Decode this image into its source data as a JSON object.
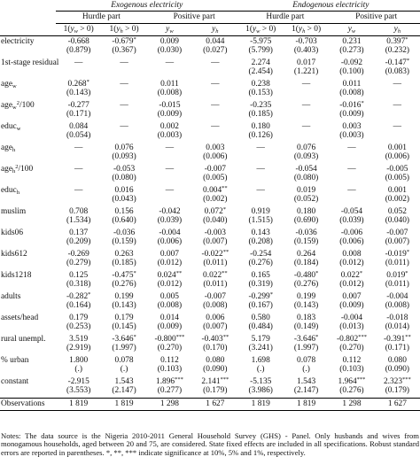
{
  "header": {
    "group1": "Exogenous electricity",
    "group2": "Endogenous electricity",
    "sub": [
      "Hurdle part",
      "Positive part",
      "Hurdle part",
      "Positive part"
    ],
    "cols": [
      "1(y_w > 0)",
      "1(y_h > 0)",
      "y_w",
      "y_h",
      "1(y_w > 0)",
      "1(y_h > 0)",
      "y_w",
      "y_h"
    ]
  },
  "rows": [
    {
      "label": "electricity",
      "coef": [
        "-0.668",
        "-0.679*",
        "0.009",
        "0.044",
        "-5.975",
        "-0.703",
        "0.231",
        "0.397*"
      ],
      "se": [
        "(0.879)",
        "(0.367)",
        "(0.030)",
        "(0.027)",
        "(5.799)",
        "(0.403)",
        "(0.273)",
        "(0.232)"
      ]
    },
    {
      "label": "1st-stage residual",
      "coef": [
        "—",
        "—",
        "—",
        "—",
        "2.274",
        "0.017",
        "-0.092",
        "-0.147*"
      ],
      "se": [
        "",
        "",
        "",
        "",
        "(2.454)",
        "(1.221)",
        "(0.100)",
        "(0.083)"
      ]
    },
    {
      "label": "age_w",
      "coef": [
        "0.268*",
        "—",
        "0.011",
        "—",
        "0.238",
        "—",
        "0.011",
        "—"
      ],
      "se": [
        "(0.143)",
        "",
        "(0.008)",
        "",
        "(0.153)",
        "",
        "(0.008)",
        ""
      ]
    },
    {
      "label": "age_w^2/100",
      "coef": [
        "-0.277",
        "—",
        "-0.015",
        "—",
        "-0.235",
        "—",
        "-0.016*",
        "—"
      ],
      "se": [
        "(0.171)",
        "",
        "(0.009)",
        "",
        "(0.185)",
        "",
        "(0.009)",
        ""
      ]
    },
    {
      "label": "educ_w",
      "coef": [
        "0.084",
        "—",
        "0.002",
        "—",
        "0.180",
        "—",
        "0.003",
        "—"
      ],
      "se": [
        "(0.054)",
        "",
        "(0.003)",
        "",
        "(0.126)",
        "",
        "(0.003)",
        ""
      ]
    },
    {
      "label": "age_h",
      "coef": [
        "—",
        "0.076",
        "—",
        "0.003",
        "—",
        "0.076",
        "—",
        "0.001"
      ],
      "se": [
        "",
        "(0.093)",
        "",
        "(0.006)",
        "",
        "(0.093)",
        "",
        "(0.006)"
      ]
    },
    {
      "label": "age_h^2/100",
      "coef": [
        "—",
        "-0.053",
        "—",
        "-0.007",
        "—",
        "-0.054",
        "—",
        "-0.005"
      ],
      "se": [
        "",
        "(0.080)",
        "",
        "(0.005)",
        "",
        "(0.080)",
        "",
        "(0.005)"
      ]
    },
    {
      "label": "educ_h",
      "coef": [
        "—",
        "0.016",
        "—",
        "0.004**",
        "—",
        "0.019",
        "—",
        "0.001"
      ],
      "se": [
        "",
        "(0.043)",
        "",
        "(0.002)",
        "",
        "(0.052)",
        "",
        "(0.002)"
      ]
    },
    {
      "label": "muslim",
      "coef": [
        "0.708",
        "0.156",
        "-0.042",
        "0.072*",
        "0.919",
        "0.180",
        "-0.054",
        "0.052"
      ],
      "se": [
        "(1.534)",
        "(0.640)",
        "(0.039)",
        "(0.040)",
        "(1.515)",
        "(0.690)",
        "(0.039)",
        "(0.040)"
      ]
    },
    {
      "label": "kids06",
      "coef": [
        "0.137",
        "-0.036",
        "-0.004",
        "-0.003",
        "0.143",
        "-0.036",
        "-0.006",
        "-0.007"
      ],
      "se": [
        "(0.209)",
        "(0.159)",
        "(0.006)",
        "(0.007)",
        "(0.208)",
        "(0.159)",
        "(0.006)",
        "(0.007)"
      ]
    },
    {
      "label": "kids612",
      "coef": [
        "-0.269",
        "0.263",
        "0.007",
        "-0.022**",
        "-0.254",
        "0.264",
        "0.008",
        "-0.019*"
      ],
      "se": [
        "(0.279)",
        "(0.185)",
        "(0.012)",
        "(0.011)",
        "(0.276)",
        "(0.184)",
        "(0.012)",
        "(0.011)"
      ]
    },
    {
      "label": "kids1218",
      "coef": [
        "0.125",
        "-0.475*",
        "0.024**",
        "0.022**",
        "0.165",
        "-0.480*",
        "0.022*",
        "0.019*"
      ],
      "se": [
        "(0.318)",
        "(0.276)",
        "(0.012)",
        "(0.011)",
        "(0.319)",
        "(0.276)",
        "(0.012)",
        "(0.011)"
      ]
    },
    {
      "label": "adults",
      "coef": [
        "-0.282*",
        "0.199",
        "0.005",
        "-0.007",
        "-0.299*",
        "0.199",
        "0.007",
        "-0.004"
      ],
      "se": [
        "(0.164)",
        "(0.143)",
        "(0.008)",
        "(0.008)",
        "(0.167)",
        "(0.143)",
        "(0.009)",
        "(0.008)"
      ]
    },
    {
      "label": "assets/head",
      "coef": [
        "0.179",
        "0.179",
        "0.014",
        "0.006",
        "0.580",
        "0.183",
        "-0.004",
        "-0.018"
      ],
      "se": [
        "(0.253)",
        "(0.145)",
        "(0.009)",
        "(0.007)",
        "(0.484)",
        "(0.149)",
        "(0.013)",
        "(0.014)"
      ]
    },
    {
      "label": "rural unempl.",
      "coef": [
        "3.519",
        "-3.646*",
        "-0.800***",
        "-0.403**",
        "5.179",
        "-3.646*",
        "-0.802***",
        "-0.391**"
      ],
      "se": [
        "(2.919)",
        "(1.997)",
        "(0.270)",
        "(0.170)",
        "(3.241)",
        "(1.997)",
        "(0.270)",
        "(0.171)"
      ]
    },
    {
      "label": "% urban",
      "coef": [
        "1.800",
        "0.078",
        "0.112",
        "0.080",
        "1.698",
        "0.078",
        "0.112",
        "0.080"
      ],
      "se": [
        "(.)",
        "(.)",
        "(0.103)",
        "(0.090)",
        "(.)",
        "(.)",
        "(0.103)",
        "(0.090)"
      ]
    },
    {
      "label": "constant",
      "coef": [
        "-2.915",
        "1.543",
        "1.896***",
        "2.141***",
        "-5.135",
        "1.543",
        "1.964***",
        "2.323***"
      ],
      "se": [
        "(3.553)",
        "(2.147)",
        "(0.277)",
        "(0.179)",
        "(3.986)",
        "(2.147)",
        "(0.276)",
        "(0.179)"
      ]
    }
  ],
  "observations": {
    "label": "Observations",
    "values": [
      "1 819",
      "1 819",
      "1 298",
      "1 627",
      "1 819",
      "1 819",
      "1 298",
      "1 627"
    ]
  },
  "notes": "Notes: The data source is the Nigeria 2010-2011 General Household Survey (GHS) - Panel. Only husbands and wives from monogamous households, aged between 20 and 75, are considered. State fixed effects are included in all specifications. Robust standard errors are reported in parentheses. *, **, *** indicate significance at 10%, 5% and 1%, respectively."
}
